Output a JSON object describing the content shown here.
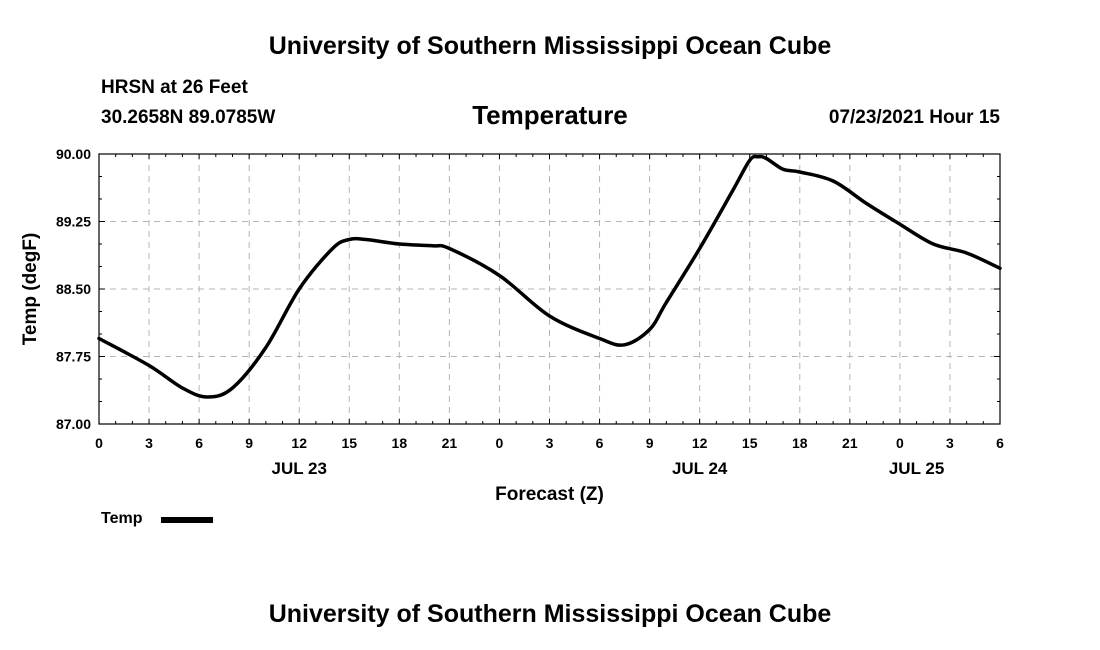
{
  "header": {
    "title": "University of Southern Mississippi Ocean Cube",
    "station": "HRSN at 26 Feet",
    "coordinates": "30.2658N  89.0785W",
    "variable": "Temperature",
    "datetime": "07/23/2021 Hour 15"
  },
  "footer": {
    "title": "University of Southern Mississippi Ocean Cube"
  },
  "legend": {
    "label": "Temp"
  },
  "chart_data": {
    "type": "line",
    "title": "Temperature",
    "xlabel": "Forecast (Z)",
    "ylabel": "Temp (degF)",
    "ylim": [
      87.0,
      90.0
    ],
    "xlim": [
      0,
      54
    ],
    "yticks": [
      "87.00",
      "87.75",
      "88.50",
      "89.25",
      "90.00"
    ],
    "xticks": [
      "0",
      "3",
      "6",
      "9",
      "12",
      "15",
      "18",
      "21",
      "0",
      "3",
      "6",
      "9",
      "12",
      "15",
      "18",
      "21",
      "0",
      "3",
      "6"
    ],
    "date_labels": [
      {
        "label": "JUL 23",
        "hour": 12
      },
      {
        "label": "JUL 24",
        "hour": 36
      },
      {
        "label": "JUL 25",
        "hour": 49
      }
    ],
    "grid": true,
    "series": [
      {
        "name": "Temp",
        "x": [
          0,
          3,
          5,
          6.5,
          8,
          10,
          12,
          14,
          15,
          16,
          18,
          20,
          21,
          24,
          27,
          30,
          31.5,
          33,
          34,
          36,
          38,
          39,
          39.5,
          40,
          41,
          42,
          44,
          46,
          48,
          50,
          52,
          54
        ],
        "values": [
          87.95,
          87.65,
          87.4,
          87.3,
          87.4,
          87.85,
          88.5,
          88.95,
          89.05,
          89.05,
          89.0,
          88.98,
          88.95,
          88.65,
          88.2,
          87.95,
          87.88,
          88.05,
          88.35,
          88.95,
          89.6,
          89.93,
          89.97,
          89.95,
          89.83,
          89.8,
          89.7,
          89.45,
          89.22,
          89.0,
          88.9,
          88.73
        ]
      }
    ]
  }
}
